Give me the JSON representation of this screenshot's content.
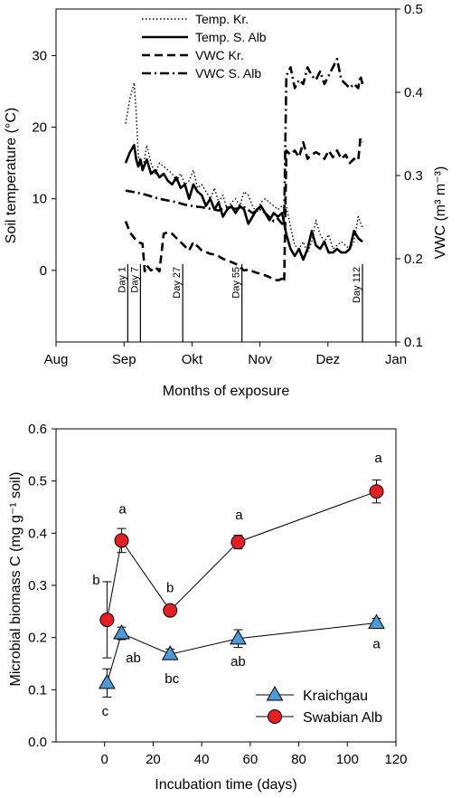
{
  "chart_data": [
    {
      "type": "line",
      "xlabel": "Months of exposure",
      "ylabel_left": "Soil temperature (°C)",
      "ylabel_right": "VWC (m³ m⁻³)",
      "x_tick_labels": [
        "Aug",
        "Sep",
        "Okt",
        "Nov",
        "Dez",
        "Jan"
      ],
      "y_left_ticks": [
        0,
        10,
        20,
        30
      ],
      "y_right_ticks": [
        0.1,
        0.2,
        0.3,
        0.4,
        0.5
      ],
      "ylim_left": [
        -10,
        36.5
      ],
      "ylim_right": [
        0.1,
        0.5
      ],
      "day_markers": [
        {
          "label": "Day 1",
          "x": 1
        },
        {
          "label": "Day 7",
          "x": 7
        },
        {
          "label": "Day 27",
          "x": 27
        },
        {
          "label": "Day 55",
          "x": 55
        },
        {
          "label": "Day 112",
          "x": 112
        }
      ],
      "legend_position": "top-right",
      "series": [
        {
          "name": "Temp. Kr.",
          "axis": "left",
          "style": "dotted",
          "x": [
            0,
            2,
            4,
            5,
            6,
            8,
            10,
            12,
            14,
            16,
            18,
            20,
            22,
            24,
            26,
            28,
            30,
            32,
            34,
            36,
            38,
            40,
            42,
            44,
            46,
            48,
            50,
            52,
            54,
            56,
            58,
            60,
            62,
            64,
            66,
            68,
            70,
            72,
            74,
            76,
            78,
            80,
            82,
            84,
            86,
            88,
            90,
            92,
            94,
            96,
            98,
            100,
            102,
            104,
            106,
            108,
            110,
            112
          ],
          "y": [
            20.5,
            24,
            26.2,
            22,
            16,
            14,
            17.5,
            15,
            13.5,
            15,
            14.5,
            14,
            13.5,
            12.5,
            13.5,
            12,
            12.5,
            14,
            11.5,
            12,
            11,
            10,
            11.5,
            9.5,
            10.5,
            8.5,
            9.5,
            10,
            9,
            11,
            10.5,
            9,
            8,
            9.5,
            10,
            9.5,
            9,
            8.5,
            9,
            9,
            6,
            3.5,
            3,
            4,
            2.5,
            4,
            7,
            5,
            4,
            5,
            3,
            3.5,
            4,
            3.5,
            3,
            4,
            7.5,
            6
          ]
        },
        {
          "name": "Temp. S. Alb",
          "axis": "left",
          "style": "solid",
          "x": [
            0,
            2,
            4,
            5,
            6,
            7,
            8,
            10,
            12,
            14,
            16,
            18,
            20,
            22,
            24,
            26,
            28,
            30,
            32,
            34,
            36,
            38,
            40,
            42,
            44,
            46,
            48,
            50,
            52,
            54,
            56,
            58,
            60,
            62,
            64,
            66,
            68,
            70,
            72,
            74,
            76,
            78,
            80,
            82,
            84,
            86,
            88,
            90,
            92,
            94,
            96,
            98,
            100,
            102,
            104,
            106,
            108,
            110,
            112
          ],
          "y": [
            15,
            16.5,
            17.5,
            15.5,
            14.5,
            15.5,
            14,
            15.5,
            13.5,
            14,
            13,
            13.5,
            12.5,
            12,
            13,
            11.5,
            12,
            10,
            12,
            11,
            10.5,
            9,
            10,
            8.5,
            9.5,
            7.5,
            8.5,
            9,
            8,
            9,
            8.5,
            6.5,
            7.5,
            8.5,
            9,
            8,
            7,
            8,
            7.5,
            8,
            5,
            3,
            2,
            3,
            1.5,
            3,
            5.5,
            3.5,
            3,
            4,
            2.5,
            2.5,
            3,
            2.5,
            2.5,
            3,
            5.5,
            4.5,
            4
          ]
        },
        {
          "name": "VWC Kr.",
          "axis": "right",
          "style": "dashed",
          "x": [
            0,
            2,
            4,
            6,
            8,
            9,
            10,
            12,
            14,
            16,
            18,
            20,
            22,
            24,
            26,
            28,
            30,
            32,
            34,
            36,
            38,
            40,
            42,
            44,
            46,
            48,
            50,
            52,
            54,
            56,
            58,
            60,
            62,
            64,
            66,
            68,
            70,
            72,
            74,
            75,
            76,
            78,
            80,
            82,
            84,
            86,
            88,
            90,
            92,
            94,
            96,
            98,
            100,
            102,
            104,
            106,
            108,
            110,
            111,
            112
          ],
          "y": [
            0.245,
            0.232,
            0.225,
            0.22,
            0.218,
            0.185,
            0.192,
            0.186,
            0.19,
            0.185,
            0.23,
            0.232,
            0.23,
            0.225,
            0.22,
            0.215,
            0.21,
            0.22,
            0.215,
            0.21,
            0.208,
            0.206,
            0.205,
            0.203,
            0.2,
            0.198,
            0.196,
            0.194,
            0.19,
            0.186,
            0.187,
            0.185,
            0.183,
            0.182,
            0.18,
            0.178,
            0.175,
            0.174,
            0.176,
            0.172,
            0.33,
            0.325,
            0.33,
            0.322,
            0.34,
            0.32,
            0.325,
            0.328,
            0.325,
            0.32,
            0.33,
            0.322,
            0.33,
            0.32,
            0.325,
            0.315,
            0.32,
            0.318,
            0.345,
            0.34
          ]
        },
        {
          "name": "VWC S. Alb",
          "axis": "right",
          "style": "dashdot",
          "x": [
            0,
            4,
            8,
            12,
            16,
            20,
            24,
            28,
            32,
            36,
            40,
            44,
            48,
            52,
            56,
            60,
            64,
            66,
            68,
            70,
            72,
            74,
            75,
            76,
            78,
            80,
            82,
            84,
            86,
            88,
            90,
            92,
            94,
            96,
            98,
            100,
            102,
            104,
            106,
            108,
            110,
            111,
            112
          ],
          "y": [
            0.282,
            0.28,
            0.278,
            0.275,
            0.272,
            0.27,
            0.268,
            0.265,
            0.263,
            0.262,
            0.26,
            0.258,
            0.262,
            0.26,
            0.262,
            0.255,
            0.26,
            0.255,
            0.25,
            0.245,
            0.248,
            0.242,
            0.25,
            0.42,
            0.43,
            0.405,
            0.415,
            0.41,
            0.43,
            0.42,
            0.415,
            0.425,
            0.41,
            0.42,
            0.43,
            0.44,
            0.415,
            0.41,
            0.405,
            0.41,
            0.405,
            0.42,
            0.41
          ]
        }
      ]
    },
    {
      "type": "scatter",
      "xlabel": "Incubation time (days)",
      "ylabel": "Microbial biomass C (mg g⁻¹ soil)",
      "xlim": [
        -20,
        120
      ],
      "ylim": [
        0,
        0.6
      ],
      "x_ticks": [
        0,
        20,
        40,
        60,
        80,
        100,
        120
      ],
      "y_ticks": [
        0.0,
        0.1,
        0.2,
        0.3,
        0.4,
        0.5,
        0.6
      ],
      "legend_position": "bottom-right",
      "series": [
        {
          "name": "Kraichgau",
          "marker": "triangle",
          "color": "#4a9bd8",
          "x": [
            1,
            7,
            27,
            55,
            112
          ],
          "y": [
            0.113,
            0.208,
            0.168,
            0.198,
            0.228
          ],
          "err": [
            0.027,
            0.012,
            0.01,
            0.017,
            0.009
          ],
          "letters": [
            "c",
            "ab",
            "bc",
            "ab",
            "a"
          ]
        },
        {
          "name": "Swabian Alb",
          "marker": "circle",
          "color": "#e31e24",
          "x": [
            1,
            7,
            27,
            55,
            112
          ],
          "y": [
            0.234,
            0.386,
            0.252,
            0.383,
            0.48
          ],
          "err": [
            0.073,
            0.023,
            0.01,
            0.013,
            0.022
          ],
          "letters": [
            "b",
            "a",
            "b",
            "a",
            "a"
          ]
        }
      ]
    }
  ]
}
